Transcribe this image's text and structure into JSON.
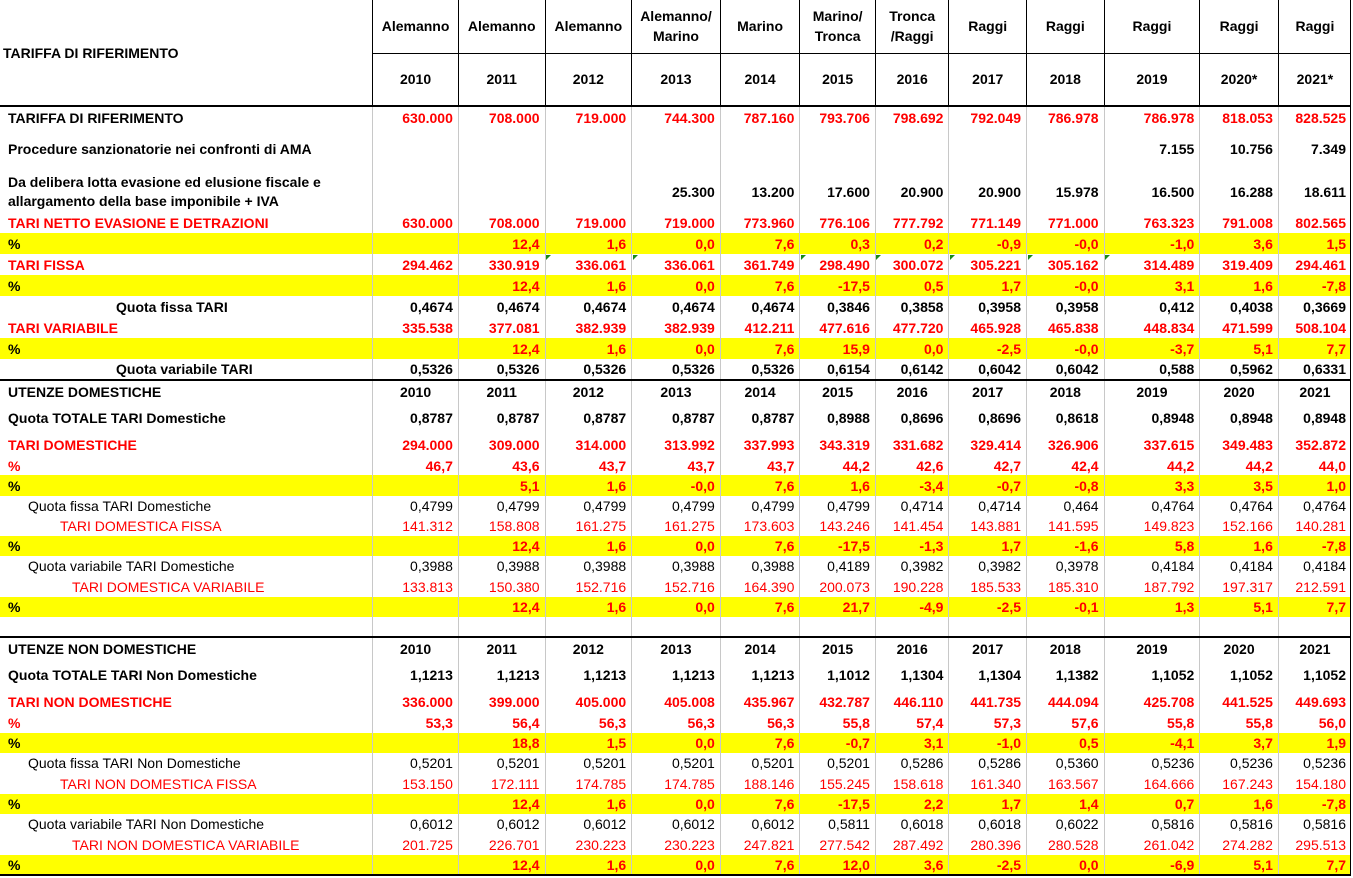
{
  "header": {
    "title": "TARIFFA DI RIFERIMENTO",
    "admins": [
      "Alemanno",
      "Alemanno",
      "Alemanno",
      "Alemanno/ Marino",
      "Marino",
      "Marino/ Tronca",
      "Tronca /Raggi",
      "Raggi",
      "Raggi",
      "Raggi",
      "Raggi",
      "Raggi"
    ],
    "years": [
      "2010",
      "2011",
      "2012",
      "2013",
      "2014",
      "2015",
      "2016",
      "2017",
      "2018",
      "2019",
      "2020*",
      "2021*"
    ]
  },
  "rows": [
    {
      "label": "TARIFFA DI RIFERIMENTO",
      "values": [
        "630.000",
        "708.000",
        "719.000",
        "744.300",
        "787.160",
        "793.706",
        "798.692",
        "792.049",
        "786.978",
        "786.978",
        "818.053",
        "828.525"
      ]
    },
    {
      "label": "Procedure sanzionatorie nei confronti di AMA",
      "values": [
        "",
        "",
        "",
        "",
        "",
        "",
        "",
        "",
        "",
        "7.155",
        "10.756",
        "7.349"
      ]
    },
    {
      "label": "Da delibera lotta evasione ed  elusione  fiscale e allargamento della base imponibile + IVA",
      "values": [
        "",
        "",
        "",
        "25.300",
        "13.200",
        "17.600",
        "20.900",
        "20.900",
        "15.978",
        "16.500",
        "16.288",
        "18.611"
      ]
    },
    {
      "label": "TARI NETTO EVASIONE E DETRAZIONI",
      "values": [
        "630.000",
        "708.000",
        "719.000",
        "719.000",
        "773.960",
        "776.106",
        "777.792",
        "771.149",
        "771.000",
        "763.323",
        "791.008",
        "802.565"
      ]
    },
    {
      "label": "%",
      "values": [
        "",
        "12,4",
        "1,6",
        "0,0",
        "7,6",
        "0,3",
        "0,2",
        "-0,9",
        "-0,0",
        "-1,0",
        "3,6",
        "1,5"
      ]
    },
    {
      "label": "TARI FISSA",
      "values": [
        "294.462",
        "330.919",
        "336.061",
        "336.061",
        "361.749",
        "298.490",
        "300.072",
        "305.221",
        "305.162",
        "314.489",
        "319.409",
        "294.461"
      ]
    },
    {
      "label": "%",
      "values": [
        "",
        "12,4",
        "1,6",
        "0,0",
        "7,6",
        "-17,5",
        "0,5",
        "1,7",
        "-0,0",
        "3,1",
        "1,6",
        "-7,8"
      ]
    },
    {
      "label": "Quota fissa TARI",
      "values": [
        "0,4674",
        "0,4674",
        "0,4674",
        "0,4674",
        "0,4674",
        "0,3846",
        "0,3858",
        "0,3958",
        "0,3958",
        "0,412",
        "0,4038",
        "0,3669"
      ]
    },
    {
      "label": "TARI VARIABILE",
      "values": [
        "335.538",
        "377.081",
        "382.939",
        "382.939",
        "412.211",
        "477.616",
        "477.720",
        "465.928",
        "465.838",
        "448.834",
        "471.599",
        "508.104"
      ]
    },
    {
      "label": "%",
      "values": [
        "",
        "12,4",
        "1,6",
        "0,0",
        "7,6",
        "15,9",
        "0,0",
        "-2,5",
        "-0,0",
        "-3,7",
        "5,1",
        "7,7"
      ]
    },
    {
      "label": "Quota variabile TARI",
      "values": [
        "0,5326",
        "0,5326",
        "0,5326",
        "0,5326",
        "0,5326",
        "0,6154",
        "0,6142",
        "0,6042",
        "0,6042",
        "0,588",
        "0,5962",
        "0,6331"
      ]
    },
    {
      "label": "UTENZE DOMESTICHE",
      "values": [
        "2010",
        "2011",
        "2012",
        "2013",
        "2014",
        "2015",
        "2016",
        "2017",
        "2018",
        "2019",
        "2020",
        "2021"
      ]
    },
    {
      "label": "Quota TOTALE TARI Domestiche",
      "values": [
        "0,8787",
        "0,8787",
        "0,8787",
        "0,8787",
        "0,8787",
        "0,8988",
        "0,8696",
        "0,8696",
        "0,8618",
        "0,8948",
        "0,8948",
        "0,8948"
      ]
    },
    {
      "label": "TARI  DOMESTICHE",
      "values": [
        "294.000",
        "309.000",
        "314.000",
        "313.992",
        "337.993",
        "343.319",
        "331.682",
        "329.414",
        "326.906",
        "337.615",
        "349.483",
        "352.872"
      ]
    },
    {
      "label": "%",
      "values": [
        "46,7",
        "43,6",
        "43,7",
        "43,7",
        "43,7",
        "44,2",
        "42,6",
        "42,7",
        "42,4",
        "44,2",
        "44,2",
        "44,0"
      ]
    },
    {
      "label": "%",
      "values": [
        "",
        "5,1",
        "1,6",
        "-0,0",
        "7,6",
        "1,6",
        "-3,4",
        "-0,7",
        "-0,8",
        "3,3",
        "3,5",
        "1,0"
      ]
    },
    {
      "label": "Quota fissa TARI Domestiche",
      "values": [
        "0,4799",
        "0,4799",
        "0,4799",
        "0,4799",
        "0,4799",
        "0,4799",
        "0,4714",
        "0,4714",
        "0,464",
        "0,4764",
        "0,4764",
        "0,4764"
      ]
    },
    {
      "label": "TARI  DOMESTICA FISSA",
      "values": [
        "141.312",
        "158.808",
        "161.275",
        "161.275",
        "173.603",
        "143.246",
        "141.454",
        "143.881",
        "141.595",
        "149.823",
        "152.166",
        "140.281"
      ]
    },
    {
      "label": "%",
      "values": [
        "",
        "12,4",
        "1,6",
        "0,0",
        "7,6",
        "-17,5",
        "-1,3",
        "1,7",
        "-1,6",
        "5,8",
        "1,6",
        "-7,8"
      ]
    },
    {
      "label": "Quota variabile TARI Domestiche",
      "values": [
        "0,3988",
        "0,3988",
        "0,3988",
        "0,3988",
        "0,3988",
        "0,4189",
        "0,3982",
        "0,3982",
        "0,3978",
        "0,4184",
        "0,4184",
        "0,4184"
      ]
    },
    {
      "label": "TARI  DOMESTICA VARIABILE",
      "values": [
        "133.813",
        "150.380",
        "152.716",
        "152.716",
        "164.390",
        "200.073",
        "190.228",
        "185.533",
        "185.310",
        "187.792",
        "197.317",
        "212.591"
      ]
    },
    {
      "label": "%",
      "values": [
        "",
        "12,4",
        "1,6",
        "0,0",
        "7,6",
        "21,7",
        "-4,9",
        "-2,5",
        "-0,1",
        "1,3",
        "5,1",
        "7,7"
      ]
    },
    {
      "label": "UTENZE NON DOMESTICHE",
      "values": [
        "2010",
        "2011",
        "2012",
        "2013",
        "2014",
        "2015",
        "2016",
        "2017",
        "2018",
        "2019",
        "2020",
        "2021"
      ]
    },
    {
      "label": "Quota TOTALE TARI Non Domestiche",
      "values": [
        "1,1213",
        "1,1213",
        "1,1213",
        "1,1213",
        "1,1213",
        "1,1012",
        "1,1304",
        "1,1304",
        "1,1382",
        "1,1052",
        "1,1052",
        "1,1052"
      ]
    },
    {
      "label": "TARI  NON DOMESTICHE",
      "values": [
        "336.000",
        "399.000",
        "405.000",
        "405.008",
        "435.967",
        "432.787",
        "446.110",
        "441.735",
        "444.094",
        "425.708",
        "441.525",
        "449.693"
      ]
    },
    {
      "label": "%",
      "values": [
        "53,3",
        "56,4",
        "56,3",
        "56,3",
        "56,3",
        "55,8",
        "57,4",
        "57,3",
        "57,6",
        "55,8",
        "55,8",
        "56,0"
      ]
    },
    {
      "label": "%",
      "values": [
        "",
        "18,8",
        "1,5",
        "0,0",
        "7,6",
        "-0,7",
        "3,1",
        "-1,0",
        "0,5",
        "-4,1",
        "3,7",
        "1,9"
      ]
    },
    {
      "label": "Quota fissa TARI Non Domestiche",
      "values": [
        "0,5201",
        "0,5201",
        "0,5201",
        "0,5201",
        "0,5201",
        "0,5201",
        "0,5286",
        "0,5286",
        "0,5360",
        "0,5236",
        "0,5236",
        "0,5236"
      ]
    },
    {
      "label": "TARI NON  DOMESTICA FISSA",
      "values": [
        "153.150",
        "172.111",
        "174.785",
        "174.785",
        "188.146",
        "155.245",
        "158.618",
        "161.340",
        "163.567",
        "164.666",
        "167.243",
        "154.180"
      ]
    },
    {
      "label": "%",
      "values": [
        "",
        "12,4",
        "1,6",
        "0,0",
        "7,6",
        "-17,5",
        "2,2",
        "1,7",
        "1,4",
        "0,7",
        "1,6",
        "-7,8"
      ]
    },
    {
      "label": "Quota variabile TARI Non Domestiche",
      "values": [
        "0,6012",
        "0,6012",
        "0,6012",
        "0,6012",
        "0,6012",
        "0,5811",
        "0,6018",
        "0,6018",
        "0,6022",
        "0,5816",
        "0,5816",
        "0,5816"
      ]
    },
    {
      "label": "TARI  NON DOMESTICA VARIABILE",
      "values": [
        "201.725",
        "226.701",
        "230.223",
        "230.223",
        "247.821",
        "277.542",
        "287.492",
        "280.396",
        "280.528",
        "261.042",
        "274.282",
        "295.513"
      ]
    },
    {
      "label": "%",
      "values": [
        "",
        "12,4",
        "1,6",
        "0,0",
        "7,6",
        "12,0",
        "3,6",
        "-2,5",
        "0,0",
        "-6,9",
        "5,1",
        "7,7"
      ]
    }
  ],
  "colors": {
    "highlight": "#ffff00",
    "red": "#ff0000",
    "marker": "#1a8a1a"
  }
}
